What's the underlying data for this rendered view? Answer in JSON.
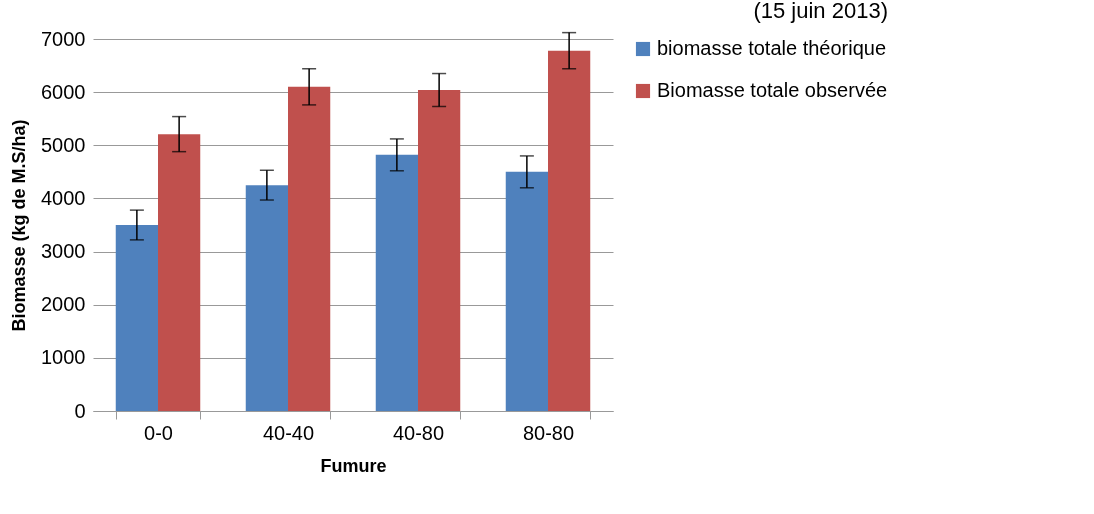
{
  "chart_data": {
    "type": "bar",
    "title": "(15 juin 2013)",
    "xlabel": "Fumure",
    "ylabel": "Biomasse (kg de M.S/ha)",
    "categories": [
      "0-0",
      "40-40",
      "40-80",
      "80-80"
    ],
    "series": [
      {
        "name": "biomasse totale théorique",
        "color": "#4f81bd",
        "values": [
          3500,
          4250,
          4820,
          4500
        ],
        "errors": [
          280,
          280,
          300,
          300
        ]
      },
      {
        "name": "Biomasse totale observée",
        "color": "#c0504d",
        "values": [
          5210,
          6100,
          6040,
          6780
        ],
        "errors": [
          330,
          340,
          310,
          340
        ]
      }
    ],
    "ylim": [
      0,
      7000
    ],
    "yticks": [
      0,
      1000,
      2000,
      3000,
      4000,
      5000,
      6000,
      7000
    ],
    "grid": "y",
    "legend": "right"
  }
}
